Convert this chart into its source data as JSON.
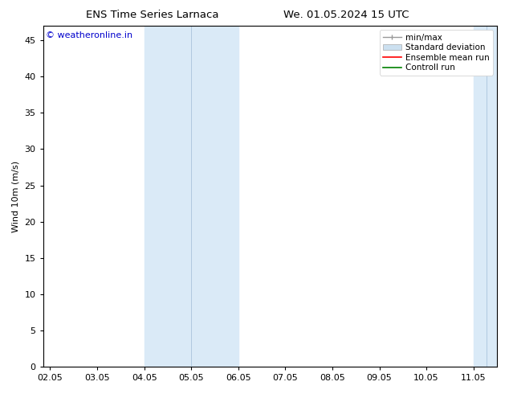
{
  "title_left": "ENS Time Series Larnaca",
  "title_right": "We. 01.05.2024 15 UTC",
  "ylabel": "Wind 10m (m/s)",
  "watermark": "© weatheronline.in",
  "watermark_color": "#0000cc",
  "background_color": "#ffffff",
  "plot_bg_color": "#ffffff",
  "ylim": [
    0,
    47
  ],
  "yticks": [
    0,
    5,
    10,
    15,
    20,
    25,
    30,
    35,
    40,
    45
  ],
  "xtick_labels": [
    "02.05",
    "03.05",
    "04.05",
    "05.05",
    "06.05",
    "07.05",
    "08.05",
    "09.05",
    "10.05",
    "11.05"
  ],
  "x_positions": [
    0,
    1,
    2,
    3,
    4,
    5,
    6,
    7,
    8,
    9
  ],
  "xlim": [
    -0.15,
    9.5
  ],
  "shaded_bands": [
    {
      "x_start": 2.0,
      "x_end": 3.0,
      "color": "#daeaf7"
    },
    {
      "x_start": 3.0,
      "x_end": 4.0,
      "color": "#daeaf7"
    },
    {
      "x_start": 9.0,
      "x_end": 9.4,
      "color": "#daeaf7"
    },
    {
      "x_start": 9.4,
      "x_end": 9.5,
      "color": "#daeaf7"
    }
  ],
  "inner_vertical_lines": [
    3.0,
    9.4
  ],
  "legend_entries": [
    {
      "label": "min/max",
      "color": "#aaaaaa"
    },
    {
      "label": "Standard deviation",
      "color": "#cce0f0"
    },
    {
      "label": "Ensemble mean run",
      "color": "#ff0000"
    },
    {
      "label": "Controll run",
      "color": "#008000"
    }
  ],
  "font_size_title": 9.5,
  "font_size_tick": 8,
  "font_size_legend": 7.5,
  "font_size_ylabel": 8,
  "font_size_watermark": 8
}
